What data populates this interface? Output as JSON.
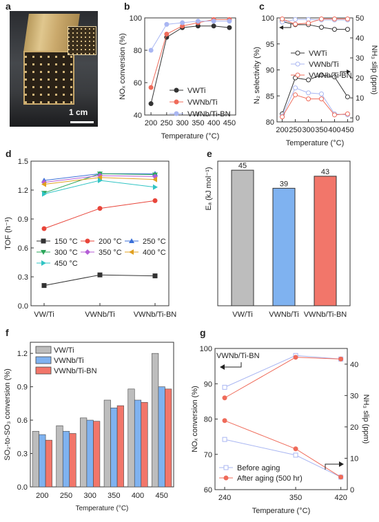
{
  "panel_labels": [
    "a",
    "b",
    "c",
    "d",
    "e",
    "f",
    "g"
  ],
  "photo": {
    "scale_text": "1 cm"
  },
  "chart_data": [
    {
      "panel": "b",
      "type": "line",
      "xlabel": "Temperature (°C)",
      "ylabel": "NOₓ conversion (%)",
      "x": [
        200,
        250,
        300,
        350,
        400,
        450
      ],
      "xlim": [
        180,
        470
      ],
      "ylim": [
        40,
        100
      ],
      "xticks": [
        200,
        250,
        300,
        350,
        400,
        450
      ],
      "yticks": [
        40,
        60,
        80,
        100
      ],
      "legend_position": "bottom-right",
      "series": [
        {
          "name": "VWTi",
          "color": "#333333",
          "marker": "circle",
          "values": [
            47,
            88,
            94,
            95,
            95,
            94
          ]
        },
        {
          "name": "VWNb/Ti",
          "color": "#ef6b5a",
          "marker": "circle",
          "values": [
            57,
            90,
            95,
            97,
            99,
            99
          ]
        },
        {
          "name": "VWNb/Ti-BN",
          "color": "#a9b6f2",
          "marker": "circle",
          "values": [
            80,
            96,
            97,
            98,
            98,
            98
          ]
        }
      ]
    },
    {
      "panel": "c",
      "type": "line",
      "xlabel": "Temperature (°C)",
      "ylabel": "N₂ selectivity (%)",
      "y2label": "NH₃ slip (ppm)",
      "x": [
        200,
        250,
        300,
        350,
        400,
        450
      ],
      "xlim": [
        180,
        470
      ],
      "ylim": [
        80,
        100
      ],
      "y2lim": [
        -2,
        50
      ],
      "xticks": [
        200,
        250,
        300,
        350,
        400,
        450
      ],
      "yticks": [
        80,
        85,
        90,
        95,
        100
      ],
      "y2ticks": [
        0,
        10,
        20,
        30,
        40,
        50
      ],
      "legend_position": "center",
      "series": [
        {
          "name": "VWTi",
          "color": "#333333",
          "axis": "left",
          "values": [
            99.3,
            98.7,
            98.7,
            98.2,
            97.8,
            97.8
          ]
        },
        {
          "name": "VWNb/Ti",
          "color": "#a9b6f2",
          "axis": "left",
          "values": [
            99.2,
            99.7,
            99.7,
            99.6,
            99.6,
            99.6
          ]
        },
        {
          "name": "VWNb/Ti-BN",
          "color": "#ef6b5a",
          "axis": "left",
          "values": [
            99.8,
            98.8,
            99.0,
            99.8,
            99.8,
            99.8
          ]
        },
        {
          "name": "",
          "color": "#333333",
          "axis": "right",
          "values": [
            2,
            20,
            19,
            21.5,
            20.5,
            10.5
          ]
        },
        {
          "name": "",
          "color": "#a9b6f2",
          "axis": "right",
          "values": [
            1,
            15,
            12.5,
            12,
            2,
            1.5
          ]
        },
        {
          "name": "",
          "color": "#ef6b5a",
          "axis": "right",
          "values": [
            0.5,
            11.5,
            9.5,
            9.5,
            1.5,
            2
          ]
        }
      ]
    },
    {
      "panel": "d",
      "type": "line",
      "xlabel": "",
      "ylabel": "TOF (h⁻¹)",
      "categories": [
        "VW/Ti",
        "VWNb/Ti",
        "VWNb/Ti-BN"
      ],
      "ylim": [
        0,
        1.5
      ],
      "yticks": [
        0.0,
        0.3,
        0.6,
        0.9,
        1.2,
        1.5
      ],
      "legend_position": "bottom",
      "series": [
        {
          "name": "150 °C",
          "color": "#333333",
          "marker": "square",
          "values": [
            0.21,
            0.32,
            0.31
          ]
        },
        {
          "name": "200 °C",
          "color": "#e8453a",
          "marker": "circle",
          "values": [
            0.8,
            1.01,
            1.09
          ]
        },
        {
          "name": "250 °C",
          "color": "#3a6fd8",
          "marker": "triangle-up",
          "values": [
            1.3,
            1.37,
            1.37
          ]
        },
        {
          "name": "300 °C",
          "color": "#2aa65a",
          "marker": "triangle-down",
          "values": [
            1.17,
            1.37,
            1.36
          ]
        },
        {
          "name": "350 °C",
          "color": "#b45ed6",
          "marker": "diamond",
          "values": [
            1.28,
            1.35,
            1.34
          ]
        },
        {
          "name": "400 °C",
          "color": "#e0a020",
          "marker": "triangle-left",
          "values": [
            1.26,
            1.33,
            1.31
          ]
        },
        {
          "name": "450 °C",
          "color": "#30c4c4",
          "marker": "triangle-right",
          "values": [
            1.16,
            1.3,
            1.23
          ]
        }
      ]
    },
    {
      "panel": "e",
      "type": "bar",
      "ylabel": "Eₐ (kJ mol⁻¹)",
      "categories": [
        "VW/Ti",
        "VWNb/Ti",
        "VWNb/Ti-BN"
      ],
      "values": [
        45,
        39,
        43
      ],
      "value_labels": [
        "45",
        "39",
        "43"
      ],
      "colors": [
        "#bdbdbd",
        "#7fb2f0",
        "#f2766a"
      ],
      "ylim": [
        0,
        48
      ]
    },
    {
      "panel": "f",
      "type": "bar",
      "xlabel": "Temperature (°C)",
      "ylabel": "SO₂-to-SO₃ conversion (%)",
      "categories": [
        "200",
        "250",
        "300",
        "350",
        "400",
        "450"
      ],
      "ylim": [
        0,
        1.3
      ],
      "yticks": [
        0.0,
        0.3,
        0.6,
        0.9,
        1.2
      ],
      "legend_position": "top-left",
      "series": [
        {
          "name": "VW/Ti",
          "color": "#bdbdbd",
          "values": [
            0.5,
            0.55,
            0.62,
            0.78,
            0.88,
            1.2
          ]
        },
        {
          "name": "VWNb/Ti",
          "color": "#7fb2f0",
          "values": [
            0.47,
            0.5,
            0.6,
            0.71,
            0.78,
            0.9
          ]
        },
        {
          "name": "VWNb/Ti-BN",
          "color": "#f2766a",
          "values": [
            0.42,
            0.48,
            0.59,
            0.73,
            0.76,
            0.88
          ]
        }
      ]
    },
    {
      "panel": "g",
      "type": "line",
      "title": "VWNb/Ti-BN",
      "xlabel": "Temperature (°C)",
      "ylabel": "NOₓ conversion (%)",
      "y2label": "NH₃ slip (ppm)",
      "x": [
        240,
        350,
        420
      ],
      "xlim": [
        225,
        430
      ],
      "ylim": [
        60,
        100
      ],
      "y2lim": [
        0,
        45
      ],
      "xticks": [
        240,
        350,
        420
      ],
      "yticks": [
        60,
        70,
        80,
        90,
        100
      ],
      "y2ticks": [
        0,
        10,
        20,
        30,
        40
      ],
      "legend_position": "bottom-left",
      "series": [
        {
          "name": "Before aging",
          "color": "#a9b6f2",
          "marker": "square-open",
          "axis": "left",
          "values": [
            89,
            98,
            97
          ]
        },
        {
          "name": "After aging (500 hr)",
          "color": "#ef6b5a",
          "marker": "circle",
          "axis": "left",
          "values": [
            86,
            97.5,
            97
          ]
        },
        {
          "name": "",
          "color": "#a9b6f2",
          "marker": "square-open",
          "axis": "right",
          "values": [
            16,
            11,
            4
          ]
        },
        {
          "name": "",
          "color": "#ef6b5a",
          "marker": "circle",
          "axis": "right",
          "values": [
            22,
            13,
            4
          ]
        }
      ]
    }
  ]
}
